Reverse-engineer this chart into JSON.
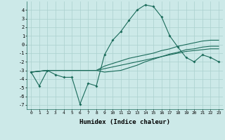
{
  "xlabel": "Humidex (Indice chaleur)",
  "x": [
    0,
    1,
    2,
    3,
    4,
    5,
    6,
    7,
    8,
    9,
    10,
    11,
    12,
    13,
    14,
    15,
    16,
    17,
    18,
    19,
    20,
    21,
    22,
    23
  ],
  "line1": [
    -3.2,
    -4.8,
    -3.0,
    -3.5,
    -3.8,
    -3.8,
    -6.9,
    -4.5,
    -4.8,
    -1.2,
    0.5,
    1.5,
    2.8,
    4.0,
    4.6,
    4.4,
    3.2,
    1.0,
    -0.3,
    -1.5,
    -2.0,
    -1.2,
    -1.5,
    -2.0
  ],
  "line2": [
    -3.2,
    -3.1,
    -3.0,
    -3.0,
    -3.0,
    -3.0,
    -3.0,
    -3.0,
    -3.0,
    -2.8,
    -2.6,
    -2.4,
    -2.2,
    -2.0,
    -1.8,
    -1.6,
    -1.4,
    -1.2,
    -1.0,
    -0.8,
    -0.7,
    -0.6,
    -0.5,
    -0.5
  ],
  "line3": [
    -3.2,
    -3.1,
    -3.0,
    -3.0,
    -3.0,
    -3.0,
    -3.0,
    -3.0,
    -3.0,
    -2.5,
    -2.2,
    -1.9,
    -1.6,
    -1.4,
    -1.2,
    -1.0,
    -0.7,
    -0.5,
    -0.2,
    0.0,
    0.2,
    0.4,
    0.5,
    0.5
  ],
  "line4": [
    -3.2,
    -3.1,
    -3.0,
    -3.0,
    -3.0,
    -3.0,
    -3.0,
    -3.0,
    -3.0,
    -3.2,
    -3.1,
    -3.0,
    -2.7,
    -2.4,
    -2.0,
    -1.7,
    -1.4,
    -1.1,
    -0.9,
    -0.6,
    -0.5,
    -0.3,
    -0.2,
    -0.2
  ],
  "ylim": [
    -7.5,
    5.0
  ],
  "yticks": [
    -7,
    -6,
    -5,
    -4,
    -3,
    -2,
    -1,
    0,
    1,
    2,
    3,
    4
  ],
  "xticks": [
    0,
    1,
    2,
    3,
    4,
    5,
    6,
    7,
    8,
    9,
    10,
    11,
    12,
    13,
    14,
    15,
    16,
    17,
    18,
    19,
    20,
    21,
    22,
    23
  ],
  "line_color": "#1a6b5a",
  "bg_color": "#cce9e8",
  "grid_color": "#aad0ce"
}
